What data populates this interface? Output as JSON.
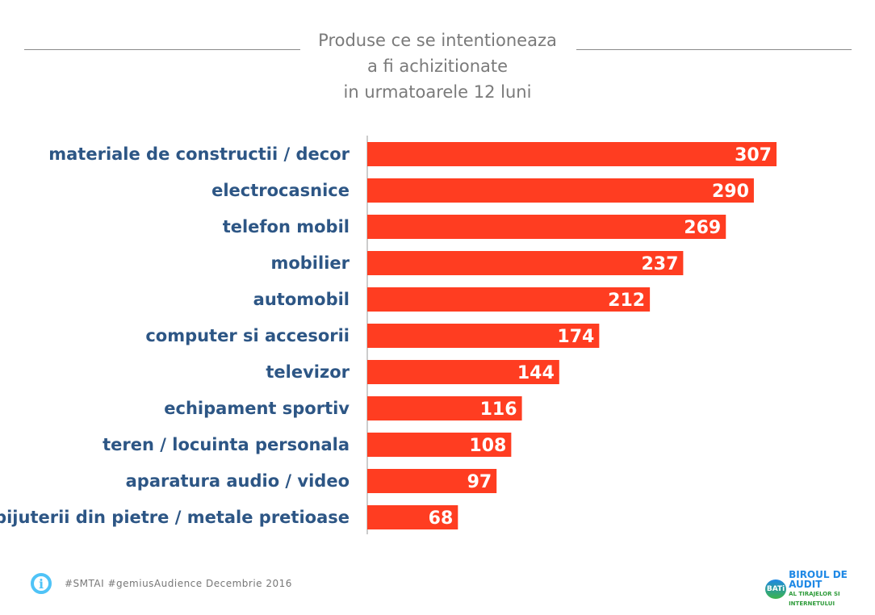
{
  "chart_data": {
    "type": "bar",
    "orientation": "horizontal",
    "title": [
      "Produse ce se intentioneaza",
      "a fi achizitionate",
      "in urmatoarele 12 luni"
    ],
    "categories": [
      "materiale de constructii / decor",
      "electrocasnice",
      "telefon mobil",
      "mobilier",
      "automobil",
      "computer si accesorii",
      "televizor",
      "echipament sportiv",
      "teren / locuinta personala",
      "aparatura audio / video",
      "bijuterii din pietre / metale pretioase"
    ],
    "values": [
      307,
      290,
      269,
      237,
      212,
      174,
      144,
      116,
      108,
      97,
      68
    ],
    "xlim": [
      0,
      307
    ],
    "grid": false,
    "data_labels": true,
    "colors": {
      "bar": "#ff3d21",
      "category_text": "#2d5685",
      "value_text": "#ffffff"
    }
  },
  "footer": {
    "source": "#SMTAI #gemiusAudience Decembrie 2016",
    "icon": "info-icon"
  },
  "logo": {
    "badge": "BATi",
    "line1": "BIROUL DE AUDIT",
    "line2": "AL TIRAJELOR SI INTERNETULUI"
  }
}
